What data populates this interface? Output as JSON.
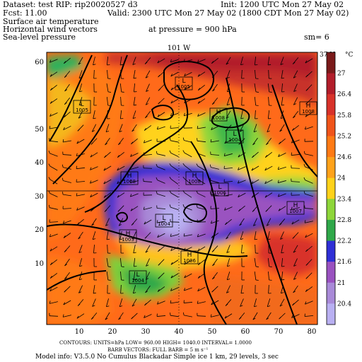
{
  "header": {
    "dataset": "Dataset: test   RIP: rip20020527 d3",
    "init": "Init: 1200 UTC Mon 27 May 02",
    "fcst": "Fcst:     11.00",
    "valid": "Valid: 2300 UTC Mon 27 May 02 (1800 CDT Mon 27 May 02)",
    "field1": "Surface air temperature",
    "field2": "Horizontal wind vectors",
    "field3": "Sea-level pressure",
    "pressure": "at pressure =   900 hPa",
    "sm": "sm= 6"
  },
  "map": {
    "meridian_label": "101 W",
    "parallel_label": "37 N",
    "x_ticks": [
      "10",
      "20",
      "30",
      "40",
      "50",
      "60",
      "70",
      "80"
    ],
    "y_ticks": [
      "60",
      "50",
      "40",
      "30",
      "20",
      "10"
    ]
  },
  "colorbar": {
    "unit": "°C",
    "labels": [
      "27",
      "26.4",
      "25.8",
      "25.2",
      "24.6",
      "24",
      "23.4",
      "22.8",
      "22.2",
      "21.6",
      "21",
      "20.4"
    ]
  },
  "pressure_centers": [
    {
      "type": "L",
      "value": "1005"
    },
    {
      "type": "L",
      "value": "1005"
    },
    {
      "type": "H",
      "value": "1008"
    },
    {
      "type": "H",
      "value": "1008"
    },
    {
      "type": "L",
      "value": "1004"
    },
    {
      "type": "H",
      "value": "1008"
    },
    {
      "type": "H",
      "value": "1008"
    },
    {
      "type": "L",
      "value": "1006"
    },
    {
      "type": "H",
      "value": "1007"
    },
    {
      "type": "L",
      "value": "1004"
    },
    {
      "type": "H",
      "value": "1005"
    },
    {
      "type": "H",
      "value": "1006"
    },
    {
      "type": "L",
      "value": "1004"
    }
  ],
  "footer": {
    "line1": "CONTOURS:  UNITS=hPa   LOW=   960.00      HIGH=  1040.0       INTERVAL=    1.0000",
    "line2": "BARB VECTORS:  FULL BARB = 5 m s⁻¹",
    "line3": "Model info: V3.5.0 No Cumulus Blackadar  Simple ice    1 km,   29 levels,     3 sec"
  }
}
